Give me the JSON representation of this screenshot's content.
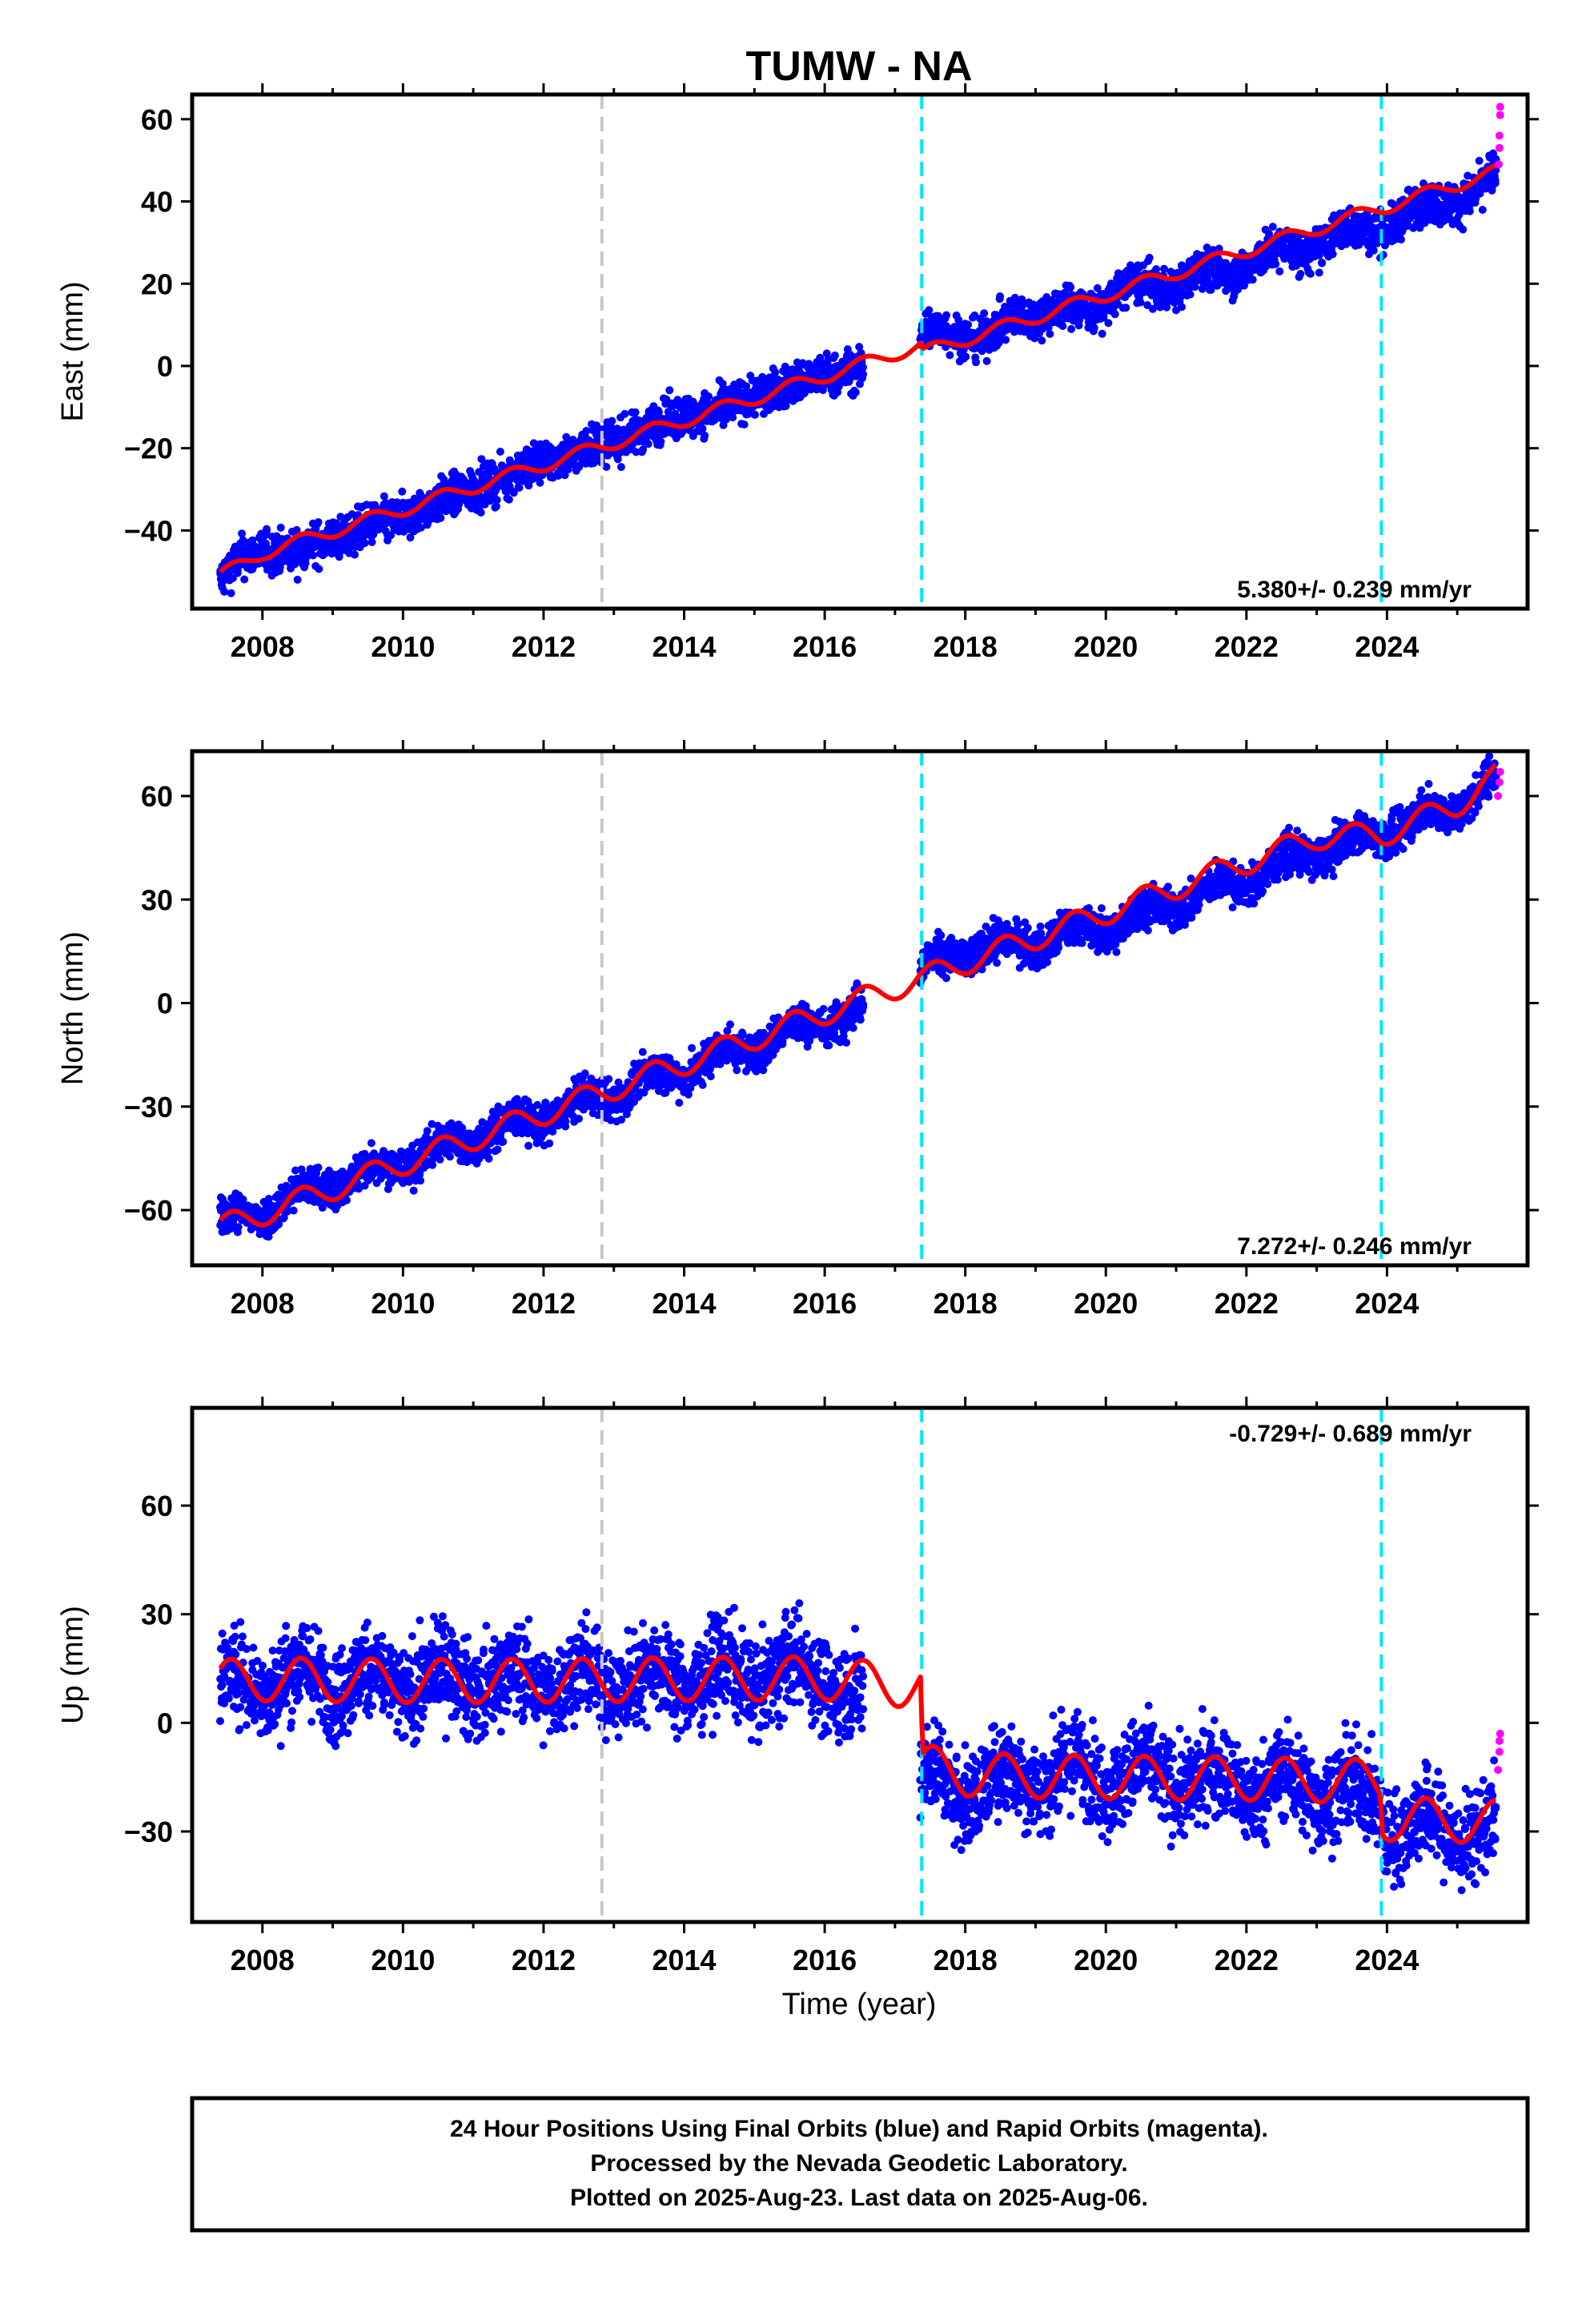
{
  "figure": {
    "title": "TUMW - NA",
    "xlabel": "Time (year)",
    "footer_lines": [
      "24 Hour Positions Using Final Orbits (blue) and Rapid Orbits (magenta).",
      "Processed by the Nevada Geodetic Laboratory.",
      "Plotted on 2025-Aug-23. Last data on 2025-Aug-06."
    ]
  },
  "colors": {
    "final_orbits": "#0000ff",
    "rapid_orbits": "#ff00ff",
    "model_fit": "#ff0000",
    "antenna_change": "#c8c8c8",
    "equipment_change": "#00e5ff",
    "frame": "#000000"
  },
  "chart_data": [
    {
      "type": "scatter",
      "panel": "east",
      "ylabel": "East (mm)",
      "rate_text": "5.380+/- 0.239 mm/yr",
      "xlim": [
        2007.0,
        2026.0
      ],
      "ylim": [
        -59,
        66
      ],
      "x_ticks": [
        2008,
        2010,
        2012,
        2014,
        2016,
        2018,
        2020,
        2022,
        2024
      ],
      "y_ticks": [
        -40,
        -20,
        0,
        20,
        40,
        60
      ],
      "y_tick_labels": [
        "−40",
        "−20",
        "0",
        "20",
        "40",
        "60"
      ],
      "grid": false,
      "vertical_lines": [
        {
          "x": 2012.83,
          "kind": "antenna_change"
        },
        {
          "x": 2017.38,
          "kind": "equipment_change"
        },
        {
          "x": 2023.92,
          "kind": "equipment_change"
        }
      ],
      "series": [
        {
          "role": "final_orbits_daily",
          "x": [
            2007.4,
            2007.7,
            2008.0,
            2008.5,
            2009.0,
            2009.5,
            2010.0,
            2010.5,
            2011.0,
            2011.5,
            2012.0,
            2012.5,
            2013.0,
            2013.5,
            2014.0,
            2014.5,
            2015.0,
            2015.5,
            2016.0,
            2016.5,
            2017.4,
            2017.8,
            2018.3,
            2018.8,
            2019.3,
            2019.8,
            2020.3,
            2020.8,
            2021.3,
            2021.8,
            2022.3,
            2022.8,
            2023.3,
            2023.8,
            2024.3,
            2024.8,
            2025.3,
            2025.55
          ],
          "y": [
            -53,
            -47,
            -44,
            -46,
            -41,
            -40,
            -36,
            -34,
            -29,
            -28,
            -22,
            -22,
            -17,
            -16,
            -11,
            -12,
            -6,
            -6,
            -1,
            -2,
            8,
            8,
            7,
            12,
            14,
            13,
            20,
            18,
            23,
            22,
            28,
            27,
            33,
            32,
            38,
            39,
            43,
            47
          ],
          "spread": 3.5
        },
        {
          "role": "rapid_orbits",
          "x": [
            2025.59,
            2025.6,
            2025.6,
            2025.61,
            2025.61
          ],
          "y": [
            49,
            53,
            56,
            61,
            63
          ]
        },
        {
          "role": "model_fit",
          "x": [
            2007.4,
            2008.0,
            2009.0,
            2010.0,
            2011.0,
            2012.0,
            2013.0,
            2014.0,
            2015.0,
            2016.0,
            2017.0,
            2017.37,
            2017.39,
            2018.0,
            2019.0,
            2020.0,
            2021.0,
            2022.0,
            2023.0,
            2023.91,
            2023.93,
            2025.0,
            2025.55
          ],
          "y": [
            -51,
            -45.5,
            -40.1,
            -34.8,
            -29.4,
            -24,
            -18.6,
            -13.2,
            -7.8,
            -2.4,
            3,
            5,
            3.2,
            6.5,
            11.9,
            17.3,
            22.7,
            28.1,
            33.5,
            38.4,
            38.4,
            44.2,
            47.2
          ],
          "seasonal_amplitude": 1.6
        }
      ]
    },
    {
      "type": "scatter",
      "panel": "north",
      "ylabel": "North (mm)",
      "rate_text": "7.272+/- 0.246 mm/yr",
      "xlim": [
        2007.0,
        2026.0
      ],
      "ylim": [
        -76,
        73
      ],
      "x_ticks": [
        2008,
        2010,
        2012,
        2014,
        2016,
        2018,
        2020,
        2022,
        2024
      ],
      "y_ticks": [
        -60,
        -30,
        0,
        30,
        60
      ],
      "y_tick_labels": [
        "−60",
        "−30",
        "0",
        "30",
        "60"
      ],
      "grid": false,
      "vertical_lines": [
        {
          "x": 2012.83,
          "kind": "antenna_change"
        },
        {
          "x": 2017.38,
          "kind": "equipment_change"
        },
        {
          "x": 2023.92,
          "kind": "equipment_change"
        }
      ],
      "series": [
        {
          "role": "final_orbits_daily",
          "x": [
            2007.4,
            2008.0,
            2009.0,
            2010.0,
            2011.0,
            2012.0,
            2013.0,
            2014.0,
            2015.0,
            2016.0,
            2016.5,
            2017.4,
            2018.0,
            2019.0,
            2020.0,
            2021.0,
            2022.0,
            2023.0,
            2024.0,
            2025.0,
            2025.55
          ],
          "y": [
            -64,
            -60,
            -52,
            -46,
            -39,
            -33,
            -26,
            -19,
            -12,
            -5,
            -2,
            10,
            15,
            18,
            22,
            29,
            36,
            44,
            50,
            57,
            65
          ],
          "spread": 4
        },
        {
          "role": "rapid_orbits",
          "x": [
            2025.58,
            2025.6,
            2025.61
          ],
          "y": [
            60,
            64,
            67
          ]
        },
        {
          "role": "model_fit",
          "x": [
            2007.4,
            2008.0,
            2009.0,
            2010.0,
            2011.0,
            2012.0,
            2013.0,
            2014.0,
            2015.0,
            2016.0,
            2017.0,
            2017.37,
            2017.39,
            2018.0,
            2019.0,
            2020.0,
            2021.0,
            2022.0,
            2023.0,
            2023.91,
            2023.93,
            2025.0,
            2025.55
          ],
          "y": [
            -65,
            -61,
            -53.7,
            -46.4,
            -39.2,
            -31.9,
            -24.6,
            -17.4,
            -10.1,
            -2.8,
            4.5,
            7.2,
            7.2,
            11.8,
            19,
            26.3,
            33.6,
            40.9,
            48.1,
            48.8,
            48.8,
            57.6,
            65.5
          ],
          "seasonal_amplitude": 3.5
        }
      ]
    },
    {
      "type": "scatter",
      "panel": "up",
      "ylabel": "Up (mm)",
      "rate_text": "-0.729+/- 0.689 mm/yr",
      "xlim": [
        2007.0,
        2026.0
      ],
      "ylim": [
        -55,
        87
      ],
      "x_ticks": [
        2008,
        2010,
        2012,
        2014,
        2016,
        2018,
        2020,
        2022,
        2024
      ],
      "y_ticks": [
        -30,
        0,
        30,
        60
      ],
      "y_tick_labels": [
        "−30",
        "0",
        "30",
        "60"
      ],
      "grid": false,
      "vertical_lines": [
        {
          "x": 2012.83,
          "kind": "antenna_change"
        },
        {
          "x": 2017.38,
          "kind": "equipment_change"
        },
        {
          "x": 2023.92,
          "kind": "equipment_change"
        }
      ],
      "series": [
        {
          "role": "final_orbits_daily",
          "x": [
            2007.4,
            2008.0,
            2009.0,
            2010.0,
            2011.0,
            2012.0,
            2013.0,
            2014.0,
            2015.0,
            2016.0,
            2016.5,
            2017.4,
            2018.0,
            2019.0,
            2020.0,
            2021.0,
            2022.0,
            2023.0,
            2023.9,
            2024.0,
            2025.0,
            2025.55
          ],
          "y": [
            10,
            12,
            12,
            11,
            12,
            11,
            12,
            13,
            13,
            14,
            5,
            -15,
            -18,
            -14,
            -14,
            -15,
            -17,
            -18,
            -22,
            -28,
            -30,
            -30
          ],
          "spread": 9
        },
        {
          "role": "rapid_orbits",
          "x": [
            2025.58,
            2025.6,
            2025.6,
            2025.61
          ],
          "y": [
            -13,
            -8,
            -5,
            -3
          ]
        },
        {
          "role": "model_fit",
          "x": [
            2007.4,
            2008.0,
            2009.0,
            2010.0,
            2011.0,
            2012.0,
            2013.0,
            2014.0,
            2015.0,
            2016.0,
            2017.0,
            2017.37,
            2017.39,
            2018.0,
            2019.0,
            2020.0,
            2021.0,
            2022.0,
            2023.0,
            2023.91,
            2023.93,
            2025.0,
            2025.55
          ],
          "y": [
            11.5,
            12,
            11.8,
            11.6,
            11.5,
            11.7,
            11.8,
            12.1,
            12.2,
            12.3,
            10.5,
            10.4,
            -11.8,
            -14.2,
            -14.8,
            -15,
            -15.3,
            -15.4,
            -15.9,
            -16.1,
            -26.5,
            -27,
            -27.4
          ],
          "seasonal_amplitude": 6
        }
      ]
    }
  ]
}
